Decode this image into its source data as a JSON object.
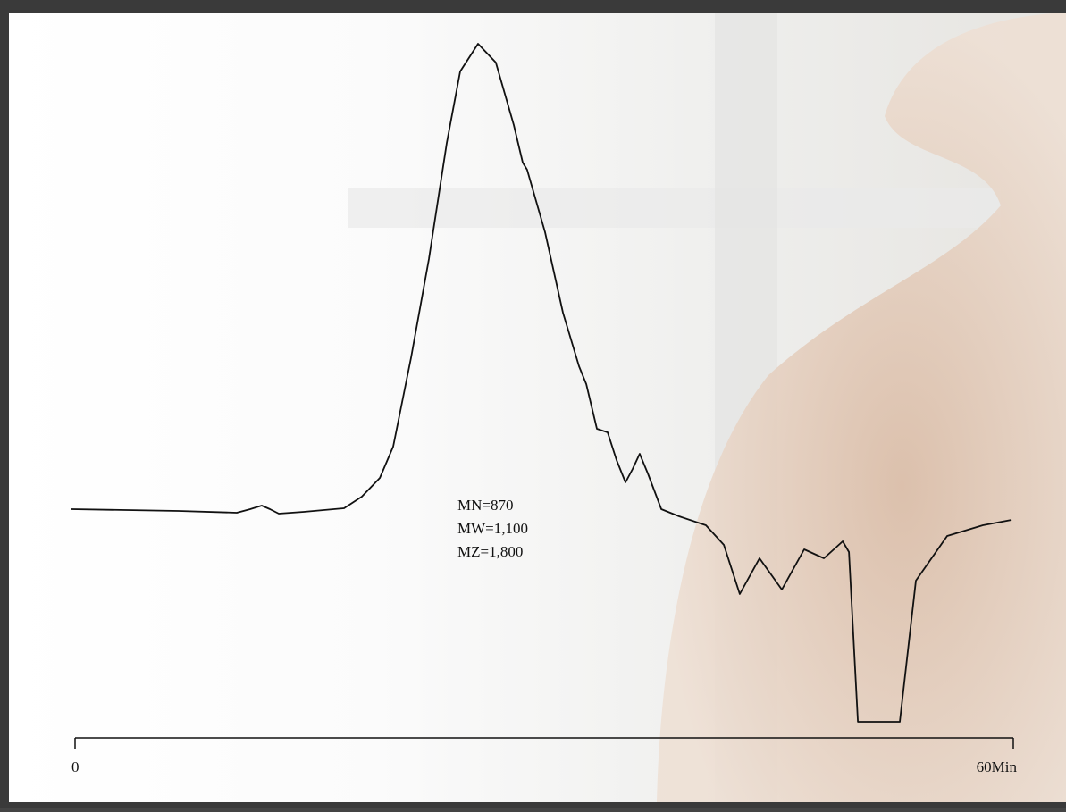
{
  "chart_data": {
    "type": "line",
    "annotations": [
      "MN=870",
      "MW=1,100",
      "MZ=1,800"
    ],
    "xlim": [
      0,
      60
    ],
    "xticks": [
      0,
      {
        "value": 60,
        "label": "60Min"
      }
    ],
    "ylim": [
      -50,
      106
    ],
    "color": "#111111",
    "x": [
      -0.23,
      6.63,
      10.34,
      11.2,
      11.94,
      12.46,
      13.03,
      14.63,
      17.2,
      18.34,
      19.49,
      20.34,
      21.49,
      22.63,
      23.77,
      24.63,
      25.77,
      26.91,
      28.06,
      28.63,
      28.91,
      30.06,
      31.2,
      32.23,
      32.69,
      33.37,
      34.06,
      34.63,
      35.2,
      35.66,
      36.11,
      36.63,
      37.49,
      38.63,
      40.34,
      41.49,
      42.51,
      43.77,
      45.2,
      46.63,
      47.89,
      49.09,
      49.49,
      50.06,
      52.74,
      53.77,
      55.77,
      58.06,
      59.89
    ],
    "values": [
      0,
      -0.4,
      -0.8,
      0,
      0.8,
      0,
      -1,
      -0.6,
      0.2,
      2.8,
      7,
      14,
      34,
      56,
      82,
      98,
      104.2,
      100,
      86,
      77.6,
      76,
      62,
      44,
      32,
      28,
      18,
      17.2,
      11,
      6,
      9,
      12.4,
      8,
      0,
      -1.6,
      -3.6,
      -8,
      -19,
      -11,
      -18,
      -9,
      -11,
      -7.2,
      -9.6,
      -47.6,
      -47.6,
      -16,
      -6,
      -3.6,
      -2.4
    ]
  }
}
